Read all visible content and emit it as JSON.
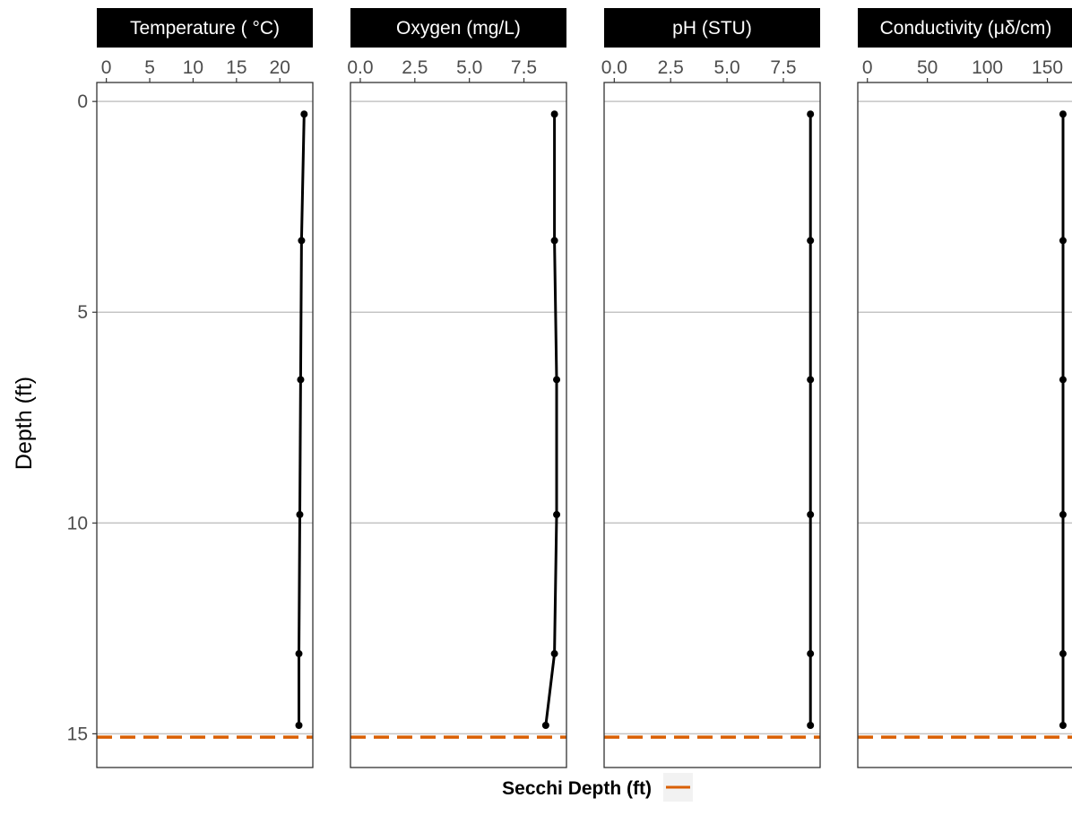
{
  "chart_data": {
    "type": "line",
    "y_axis": {
      "label": "Depth (ft)",
      "reversed": true,
      "ylim": [
        -0.45,
        15.8
      ],
      "ticks": [
        0,
        5,
        10,
        15
      ]
    },
    "depth": [
      0.3,
      3.3,
      6.6,
      9.8,
      13.1,
      14.8
    ],
    "panels": [
      {
        "title": "Temperature ( °C)",
        "xlim": [
          -1.1,
          23.8
        ],
        "ticks": [
          0,
          5,
          10,
          15,
          20
        ],
        "tick_labels": [
          "0",
          "5",
          "10",
          "15",
          "20"
        ],
        "values": [
          22.8,
          22.5,
          22.4,
          22.3,
          22.2,
          22.2
        ]
      },
      {
        "title": "Oxygen (mg/L)",
        "xlim": [
          -0.45,
          9.45
        ],
        "ticks": [
          0,
          2.5,
          5,
          7.5
        ],
        "tick_labels": [
          "0.0",
          "2.5",
          "5.0",
          "7.5"
        ],
        "values": [
          8.9,
          8.9,
          9.0,
          9.0,
          8.9,
          8.5
        ]
      },
      {
        "title": "pH (STU)",
        "xlim": [
          -0.45,
          9.13
        ],
        "ticks": [
          0,
          2.5,
          5,
          7.5
        ],
        "tick_labels": [
          "0.0",
          "2.5",
          "5.0",
          "7.5"
        ],
        "values": [
          8.7,
          8.7,
          8.7,
          8.7,
          8.7,
          8.7
        ]
      },
      {
        "title": "Conductivity (μδ/cm)",
        "xlim": [
          -8,
          172
        ],
        "ticks": [
          0,
          50,
          100,
          150
        ],
        "tick_labels": [
          "0",
          "50",
          "100",
          "150"
        ],
        "values": [
          163,
          163,
          163,
          163,
          163,
          163
        ]
      }
    ],
    "secchi_depth": 15.08,
    "legend": {
      "title": "Secchi Depth (ft)",
      "placement": "bottom",
      "color": "#d95f02"
    },
    "line_color": "#000000",
    "strip_color": "#000000",
    "grid": "horizontal-major"
  }
}
